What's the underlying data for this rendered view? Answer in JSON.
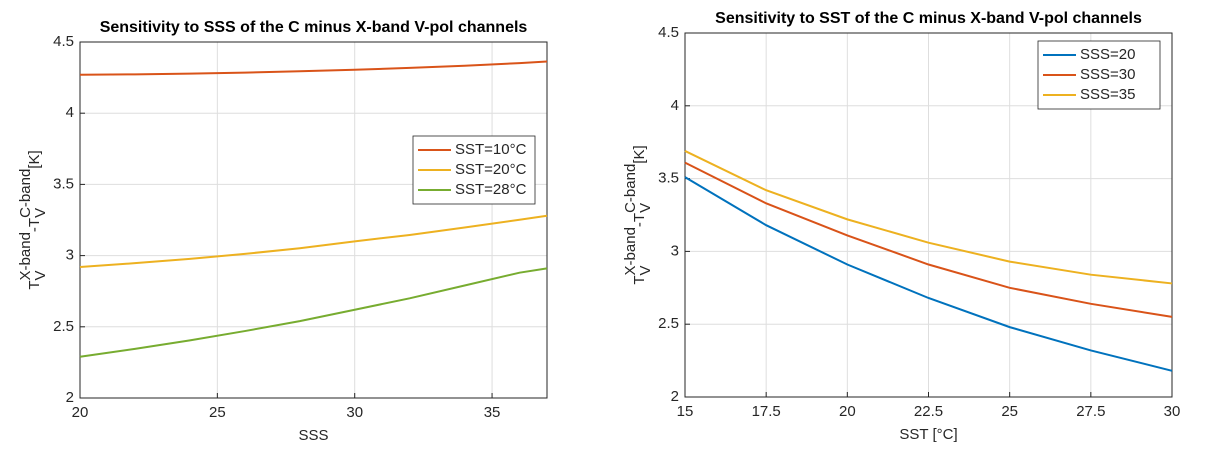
{
  "chart_data": [
    {
      "type": "line",
      "title": "Sensitivity to SSS of the C minus X-band V-pol channels",
      "xlabel": "SSS",
      "ylabel": [
        {
          "base": "T",
          "sub": "V",
          "sup": "X-band"
        },
        {
          "base": "-T",
          "sub": "V",
          "sup": "C-band"
        },
        {
          "base": " [K]"
        }
      ],
      "x": [
        20,
        22,
        24,
        26,
        28,
        30,
        32,
        34,
        36,
        37
      ],
      "series": [
        {
          "name": "SST=10°C",
          "color": "#d95319",
          "values": [
            4.27,
            4.273,
            4.278,
            4.285,
            4.295,
            4.305,
            4.318,
            4.333,
            4.352,
            4.363
          ]
        },
        {
          "name": "SST=20°C",
          "color": "#edb120",
          "values": [
            2.92,
            2.947,
            2.977,
            3.012,
            3.052,
            3.1,
            3.145,
            3.197,
            3.252,
            3.28
          ]
        },
        {
          "name": "SST=28°C",
          "color": "#77ac30",
          "values": [
            2.29,
            2.345,
            2.405,
            2.47,
            2.54,
            2.62,
            2.7,
            2.79,
            2.88,
            2.91
          ]
        }
      ],
      "xlim": [
        20,
        37
      ],
      "xticks": [
        20,
        25,
        30,
        35
      ],
      "ylim": [
        2,
        4.5
      ],
      "yticks": [
        2,
        2.5,
        3,
        3.5,
        4,
        4.5
      ],
      "grid": true,
      "legend": "east"
    },
    {
      "type": "line",
      "title": "Sensitivity to SST of the C minus X-band V-pol channels",
      "xlabel": "SST [°C]",
      "ylabel": [
        {
          "base": "T",
          "sub": "V",
          "sup": "X-band"
        },
        {
          "base": "-T",
          "sub": "V",
          "sup": "C-band"
        },
        {
          "base": " [K]"
        }
      ],
      "x": [
        15,
        17.5,
        20,
        22.5,
        25,
        27.5,
        30
      ],
      "series": [
        {
          "name": "SSS=20",
          "color": "#0072bd",
          "values": [
            3.51,
            3.18,
            2.91,
            2.68,
            2.48,
            2.32,
            2.18
          ]
        },
        {
          "name": "SSS=30",
          "color": "#d95319",
          "values": [
            3.61,
            3.33,
            3.11,
            2.91,
            2.75,
            2.64,
            2.55
          ]
        },
        {
          "name": "SSS=35",
          "color": "#edb120",
          "values": [
            3.69,
            3.42,
            3.22,
            3.06,
            2.93,
            2.84,
            2.78
          ]
        }
      ],
      "xlim": [
        15,
        30
      ],
      "xticks": [
        15,
        17.5,
        20,
        22.5,
        25,
        27.5,
        30
      ],
      "ylim": [
        2,
        4.5
      ],
      "yticks": [
        2,
        2.5,
        3,
        3.5,
        4,
        4.5
      ],
      "grid": true,
      "legend": "northeast"
    }
  ]
}
